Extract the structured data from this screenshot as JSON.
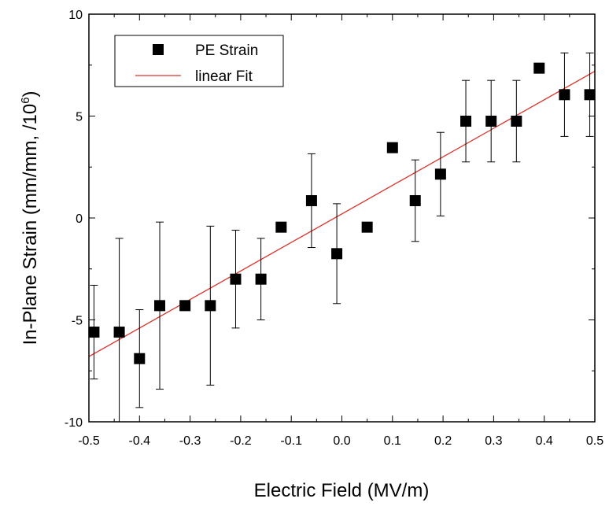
{
  "chart_data": {
    "type": "scatter",
    "xlabel": "Electric Field (MV/m)",
    "ylabel": "In-Plane Strain (mm/mm, /10",
    "ylabel_superscript": "6",
    "ylabel_suffix": ")",
    "xlim": [
      -0.5,
      0.5
    ],
    "ylim": [
      -10,
      10
    ],
    "x_ticks": [
      "-0.5",
      "-0.4",
      "-0.3",
      "-0.2",
      "-0.1",
      "0.0",
      "0.1",
      "0.2",
      "0.3",
      "0.4",
      "0.5"
    ],
    "y_ticks": [
      "-10",
      "-5",
      "0",
      "5",
      "10"
    ],
    "legend_position": "top-left",
    "grid": false,
    "series": [
      {
        "name": "PE Strain",
        "kind": "points-with-error-bars",
        "color": "#000000",
        "points": [
          {
            "x": -0.49,
            "y": -5.6,
            "err": 2.3
          },
          {
            "x": -0.44,
            "y": -5.6,
            "err": 4.6
          },
          {
            "x": -0.4,
            "y": -6.9,
            "err": 2.4
          },
          {
            "x": -0.36,
            "y": -4.3,
            "err": 4.1
          },
          {
            "x": -0.31,
            "y": -4.3,
            "err": null
          },
          {
            "x": -0.26,
            "y": -4.3,
            "err": 3.9
          },
          {
            "x": -0.21,
            "y": -3.0,
            "err": 2.4
          },
          {
            "x": -0.16,
            "y": -3.0,
            "err": 2.0
          },
          {
            "x": -0.12,
            "y": -0.45,
            "err": null
          },
          {
            "x": -0.06,
            "y": 0.85,
            "err": 2.3
          },
          {
            "x": -0.01,
            "y": -1.75,
            "err": 2.45
          },
          {
            "x": 0.05,
            "y": -0.45,
            "err": null
          },
          {
            "x": 0.1,
            "y": 3.45,
            "err": null
          },
          {
            "x": 0.145,
            "y": 0.85,
            "err": 2.0
          },
          {
            "x": 0.195,
            "y": 2.15,
            "err": 2.05
          },
          {
            "x": 0.245,
            "y": 4.75,
            "err": 2.0
          },
          {
            "x": 0.295,
            "y": 4.75,
            "err": 2.0
          },
          {
            "x": 0.345,
            "y": 4.75,
            "err": 2.0
          },
          {
            "x": 0.39,
            "y": 7.35,
            "err": null
          },
          {
            "x": 0.44,
            "y": 6.05,
            "err": 2.05
          },
          {
            "x": 0.49,
            "y": 6.05,
            "err": 2.05
          }
        ]
      },
      {
        "name": "linear Fit",
        "kind": "line",
        "color": "#d9332b",
        "x": [
          -0.5,
          0.5
        ],
        "y": [
          -6.8,
          7.2
        ]
      }
    ]
  }
}
